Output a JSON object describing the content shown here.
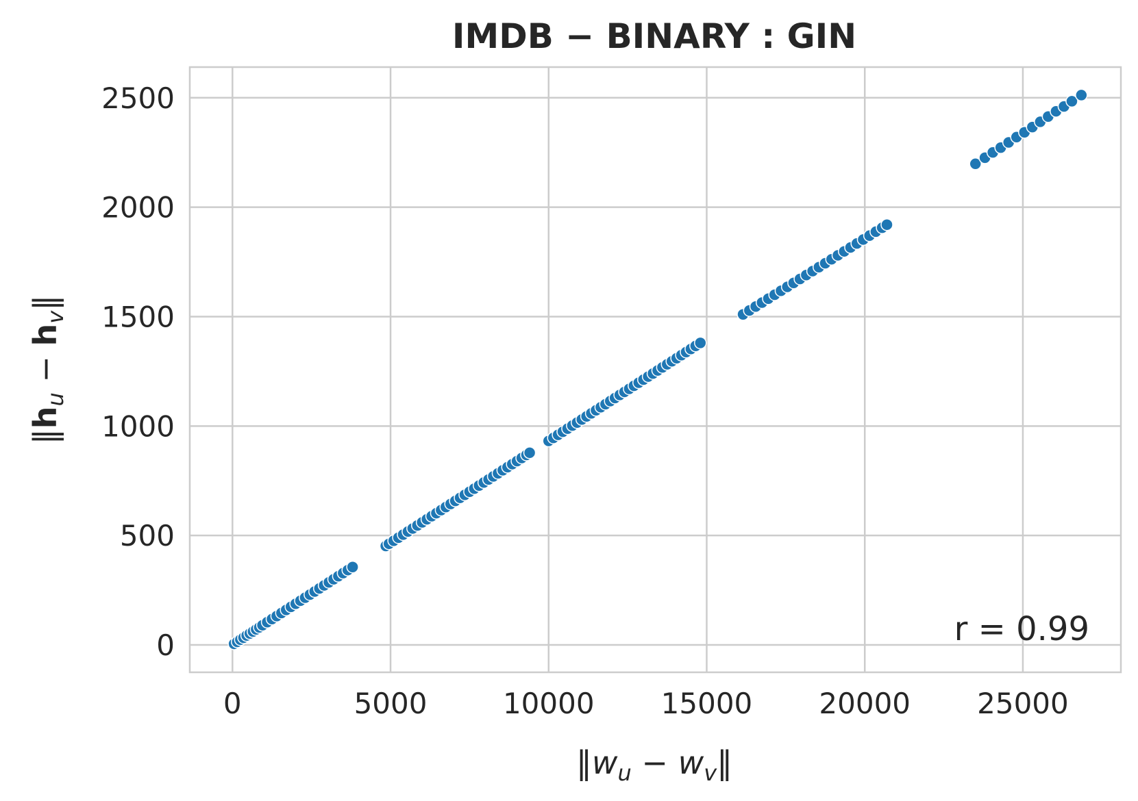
{
  "chart_data": {
    "type": "scatter",
    "title": "IMDB − BINARY : GIN",
    "xlabel": "‖w_u − w_v‖",
    "ylabel": "‖h_u − h_v‖",
    "xlim": [
      -1350,
      28100
    ],
    "ylim": [
      -125,
      2640
    ],
    "xticks": [
      0,
      5000,
      10000,
      15000,
      20000,
      25000
    ],
    "xtick_labels": [
      "0",
      "5000",
      "10000",
      "15000",
      "20000",
      "25000"
    ],
    "yticks": [
      0,
      500,
      1000,
      1500,
      2000,
      2500
    ],
    "ytick_labels": [
      "0",
      "500",
      "1000",
      "1500",
      "2000",
      "2500"
    ],
    "grid": true,
    "legend": "none",
    "annotation": "r = 0.99",
    "color": "#1f77b4",
    "series": [
      {
        "x": [
          50,
          150,
          250,
          350,
          450,
          550,
          650,
          750,
          850,
          950,
          1100,
          1250,
          1400,
          1550,
          1700,
          1850,
          2000,
          2150,
          2300,
          2450,
          2600,
          2750,
          2900,
          3050,
          3200,
          3350,
          3500,
          3650,
          3800,
          4850,
          4950,
          5100,
          5250,
          5400,
          5550,
          5700,
          5850,
          6000,
          6150,
          6300,
          6450,
          6600,
          6750,
          6900,
          7050,
          7200,
          7350,
          7500,
          7650,
          7800,
          7950,
          8100,
          8250,
          8400,
          8550,
          8700,
          8850,
          9000,
          9150,
          9300,
          9400,
          10000,
          10150,
          10300,
          10450,
          10600,
          10750,
          10900,
          11050,
          11200,
          11350,
          11500,
          11650,
          11800,
          11950,
          12100,
          12250,
          12400,
          12550,
          12700,
          12850,
          13000,
          13150,
          13300,
          13450,
          13600,
          13750,
          13900,
          14050,
          14200,
          14350,
          14500,
          14650,
          14800,
          16150,
          16350,
          16550,
          16750,
          16950,
          17150,
          17350,
          17550,
          17750,
          17950,
          18150,
          18350,
          18550,
          18750,
          18950,
          19150,
          19350,
          19550,
          19750,
          19950,
          20150,
          20350,
          20550,
          20700,
          23500,
          23800,
          24050,
          24300,
          24550,
          24800,
          25050,
          25300,
          25550,
          25800,
          26050,
          26300,
          26550,
          26850
        ],
        "y": [
          5,
          14,
          24,
          33,
          43,
          52,
          61,
          71,
          80,
          90,
          104,
          118,
          132,
          146,
          160,
          174,
          188,
          202,
          216,
          230,
          244,
          258,
          272,
          286,
          300,
          314,
          328,
          342,
          356,
          452,
          462,
          476,
          490,
          504,
          518,
          532,
          546,
          560,
          574,
          588,
          602,
          616,
          630,
          644,
          658,
          672,
          686,
          700,
          714,
          728,
          742,
          756,
          770,
          784,
          798,
          812,
          826,
          840,
          854,
          868,
          878,
          932,
          946,
          960,
          974,
          988,
          1002,
          1016,
          1030,
          1044,
          1058,
          1072,
          1086,
          1100,
          1114,
          1128,
          1142,
          1156,
          1170,
          1184,
          1198,
          1212,
          1226,
          1240,
          1254,
          1268,
          1282,
          1296,
          1310,
          1324,
          1338,
          1352,
          1366,
          1380,
          1510,
          1528,
          1546,
          1564,
          1582,
          1600,
          1618,
          1636,
          1654,
          1672,
          1690,
          1708,
          1726,
          1744,
          1762,
          1780,
          1798,
          1816,
          1834,
          1852,
          1870,
          1888,
          1906,
          1920,
          2198,
          2226,
          2250,
          2272,
          2296,
          2320,
          2342,
          2366,
          2390,
          2414,
          2438,
          2460,
          2484,
          2512
        ]
      }
    ]
  }
}
